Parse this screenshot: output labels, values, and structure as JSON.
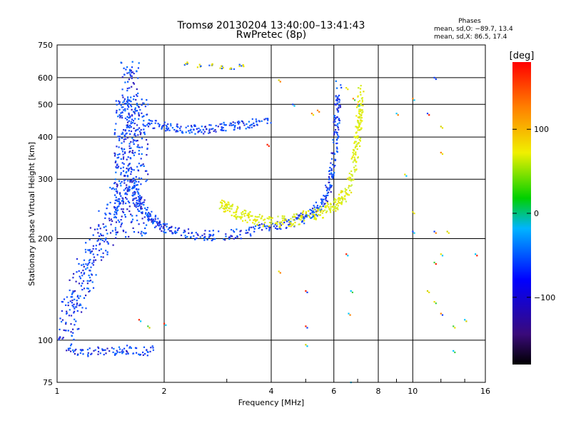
{
  "chart_data": {
    "type": "scatter",
    "title": "Tromsø 20130204 13:40:00–13:41:43",
    "subtitle": "RwPretec (8p)",
    "xlabel": "Frequency [MHz]",
    "ylabel": "Stationary phase Virtual Height [km]",
    "x_scale": "log",
    "y_scale": "log",
    "xlim": [
      1,
      16
    ],
    "ylim": [
      75,
      750
    ],
    "x_ticks": [
      1,
      2,
      4,
      6,
      8,
      10,
      16
    ],
    "x_tick_labels": [
      "1",
      "2",
      "4",
      "6",
      "8",
      "10",
      "16"
    ],
    "y_ticks": [
      75,
      100,
      200,
      300,
      400,
      500,
      600,
      750
    ],
    "y_tick_labels": [
      "75",
      "100",
      "200",
      "300",
      "400",
      "500",
      "600",
      "750"
    ],
    "grid": true,
    "phases_header": "Phases",
    "phases_stats": [
      "mean, sd,O: −89.7, 13.4",
      "mean, sd,X:  86.5, 17.4"
    ],
    "colorbar": {
      "label": "[deg]",
      "range": [
        -180,
        180
      ],
      "ticks": [
        100,
        0,
        -100
      ],
      "tick_labels": [
        "100",
        "0",
        "−100"
      ]
    },
    "o_trace": [
      [
        1.02,
        102
      ],
      [
        1.05,
        108
      ],
      [
        1.08,
        118
      ],
      [
        1.12,
        130
      ],
      [
        1.16,
        145
      ],
      [
        1.2,
        160
      ],
      [
        1.25,
        175
      ],
      [
        1.3,
        190
      ],
      [
        1.35,
        205
      ],
      [
        1.4,
        220
      ],
      [
        1.45,
        240
      ],
      [
        1.5,
        265
      ],
      [
        1.53,
        300
      ],
      [
        1.55,
        340
      ],
      [
        1.57,
        400
      ],
      [
        1.58,
        460
      ],
      [
        1.59,
        520
      ],
      [
        1.6,
        580
      ],
      [
        1.6,
        640
      ],
      [
        1.62,
        300
      ],
      [
        1.66,
        270
      ],
      [
        1.72,
        250
      ],
      [
        1.8,
        235
      ],
      [
        1.9,
        222
      ],
      [
        2.0,
        215
      ],
      [
        2.2,
        208
      ],
      [
        2.5,
        204
      ],
      [
        3.0,
        205
      ],
      [
        3.4,
        208
      ],
      [
        3.8,
        214
      ],
      [
        4.3,
        220
      ],
      [
        4.8,
        228
      ],
      [
        5.2,
        238
      ],
      [
        5.5,
        252
      ],
      [
        5.7,
        268
      ],
      [
        5.9,
        300
      ],
      [
        6.0,
        350
      ],
      [
        6.1,
        420
      ],
      [
        6.15,
        500
      ],
      [
        6.2,
        580
      ]
    ],
    "x_trace": [
      [
        2.9,
        255
      ],
      [
        3.1,
        242
      ],
      [
        3.3,
        235
      ],
      [
        3.6,
        228
      ],
      [
        4.0,
        224
      ],
      [
        4.5,
        226
      ],
      [
        5.0,
        232
      ],
      [
        5.5,
        240
      ],
      [
        6.0,
        252
      ],
      [
        6.3,
        262
      ],
      [
        6.6,
        282
      ],
      [
        6.8,
        320
      ],
      [
        6.95,
        370
      ],
      [
        7.05,
        430
      ],
      [
        7.1,
        480
      ],
      [
        7.15,
        560
      ]
    ],
    "e_cluster": [
      [
        1.05,
        95
      ],
      [
        1.15,
        92
      ],
      [
        1.3,
        93
      ],
      [
        1.45,
        92
      ],
      [
        1.6,
        94
      ],
      [
        1.75,
        92
      ],
      [
        1.9,
        95
      ]
    ],
    "f2_echo": [
      [
        1.8,
        440
      ],
      [
        2.0,
        430
      ],
      [
        2.2,
        425
      ],
      [
        2.5,
        420
      ],
      [
        2.8,
        425
      ],
      [
        3.0,
        430
      ],
      [
        3.3,
        435
      ],
      [
        3.6,
        440
      ],
      [
        4.0,
        445
      ]
    ],
    "high_echoes": [
      [
        2.3,
        660
      ],
      [
        2.5,
        650
      ],
      [
        2.7,
        655
      ],
      [
        2.9,
        645
      ],
      [
        3.1,
        640
      ],
      [
        3.3,
        650
      ]
    ],
    "scattered": [
      [
        4.2,
        590
      ],
      [
        4.6,
        500
      ],
      [
        5.2,
        470
      ],
      [
        5.4,
        480
      ],
      [
        6.5,
        560
      ],
      [
        6.8,
        520
      ],
      [
        7.0,
        500
      ],
      [
        9.5,
        310
      ],
      [
        10.0,
        520
      ],
      [
        10.0,
        240
      ],
      [
        10.0,
        210
      ],
      [
        11.0,
        470
      ],
      [
        11.5,
        600
      ],
      [
        11.5,
        210
      ],
      [
        12.0,
        430
      ],
      [
        12.0,
        360
      ],
      [
        12.5,
        210
      ],
      [
        12.0,
        180
      ],
      [
        11.5,
        170
      ],
      [
        11.0,
        140
      ],
      [
        11.5,
        130
      ],
      [
        12.0,
        120
      ],
      [
        13.0,
        110
      ],
      [
        14.0,
        115
      ],
      [
        15.0,
        180
      ],
      [
        13.0,
        93
      ],
      [
        5.0,
        140
      ],
      [
        5.0,
        110
      ],
      [
        4.2,
        160
      ],
      [
        6.5,
        180
      ],
      [
        6.7,
        140
      ],
      [
        1.8,
        110
      ],
      [
        2.0,
        112
      ],
      [
        1.7,
        115
      ],
      [
        6.6,
        120
      ],
      [
        6.7,
        75
      ],
      [
        5.0,
        97
      ],
      [
        3.9,
        380
      ],
      [
        9.0,
        470
      ]
    ]
  }
}
